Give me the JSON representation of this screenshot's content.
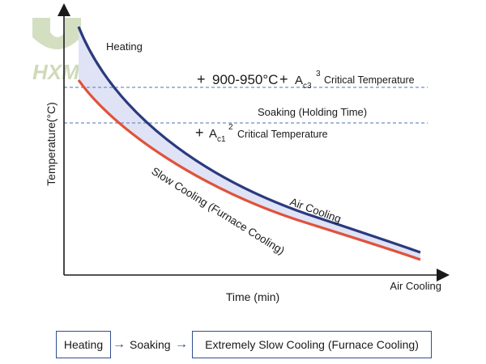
{
  "logo": {
    "text": "HXM",
    "color": "#b9c9a0"
  },
  "axes": {
    "y_label": "Temperature(°C)",
    "x_label": "Time (min)",
    "x_end_label": "Air Cooling"
  },
  "annotations": {
    "heating": "Heating",
    "temp_range": "900-950°C",
    "ac3_base": "A",
    "ac3_sub": "c3",
    "ac3_sup": "3",
    "ac3_text": "Critical Temperature",
    "soaking": "Soaking (Holding Time)",
    "ac1_base": "A",
    "ac1_sub": "c1",
    "ac1_sup": "2",
    "ac1_text": "Critical Temperature",
    "air_cooling": "Air Cooling",
    "slow_cooling": "Slow Cooling (Furnace Cooling)"
  },
  "colors": {
    "air_curve": "#2b3a7e",
    "furnace_curve": "#e0523a",
    "fill": "#dfe3f5",
    "dashed": "#6f8fbf",
    "flow_border": "#2f4f8f"
  },
  "flow": {
    "step1": "Heating",
    "arrow1": "→",
    "step2": "Soaking",
    "arrow2": "→",
    "step3": "Extremely Slow Cooling (Furnace Cooling)"
  }
}
